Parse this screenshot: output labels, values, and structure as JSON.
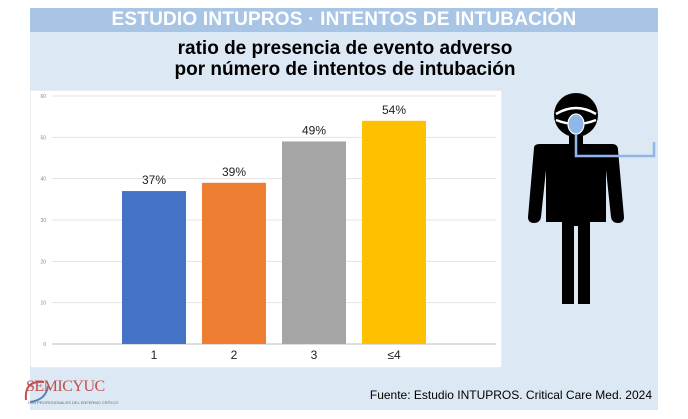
{
  "header": {
    "banner_title": "ESTUDIO INTUPROS · INTENTOS DE INTUBACIÓN",
    "title_line1": "ratio de presencia de evento adverso",
    "title_line2": "por número de intentos de intubación"
  },
  "footer": {
    "source": "Fuente: Estudio INTUPROS. Critical Care Med. 2024",
    "logo_text": "SEMICYUC",
    "logo_subtext": "LOS PROFESIONALES DEL ENFERMO CRÍTICO"
  },
  "illustration": {
    "icon": "intubated-patient-icon",
    "colors": {
      "body": "#000000",
      "tube": "#8fb8e8"
    }
  },
  "chart_data": {
    "type": "bar",
    "categories": [
      "1",
      "2",
      "3",
      "≤4"
    ],
    "values": [
      37,
      39,
      49,
      54
    ],
    "data_labels": [
      "37%",
      "39%",
      "49%",
      "54%"
    ],
    "colors": [
      "#4472c4",
      "#ed7d31",
      "#a5a5a5",
      "#ffc000"
    ],
    "y_ticks": [
      "0",
      "10",
      "20",
      "30",
      "40",
      "50",
      "60"
    ],
    "ylim": [
      0,
      60
    ],
    "grid": true,
    "legend": "none"
  }
}
